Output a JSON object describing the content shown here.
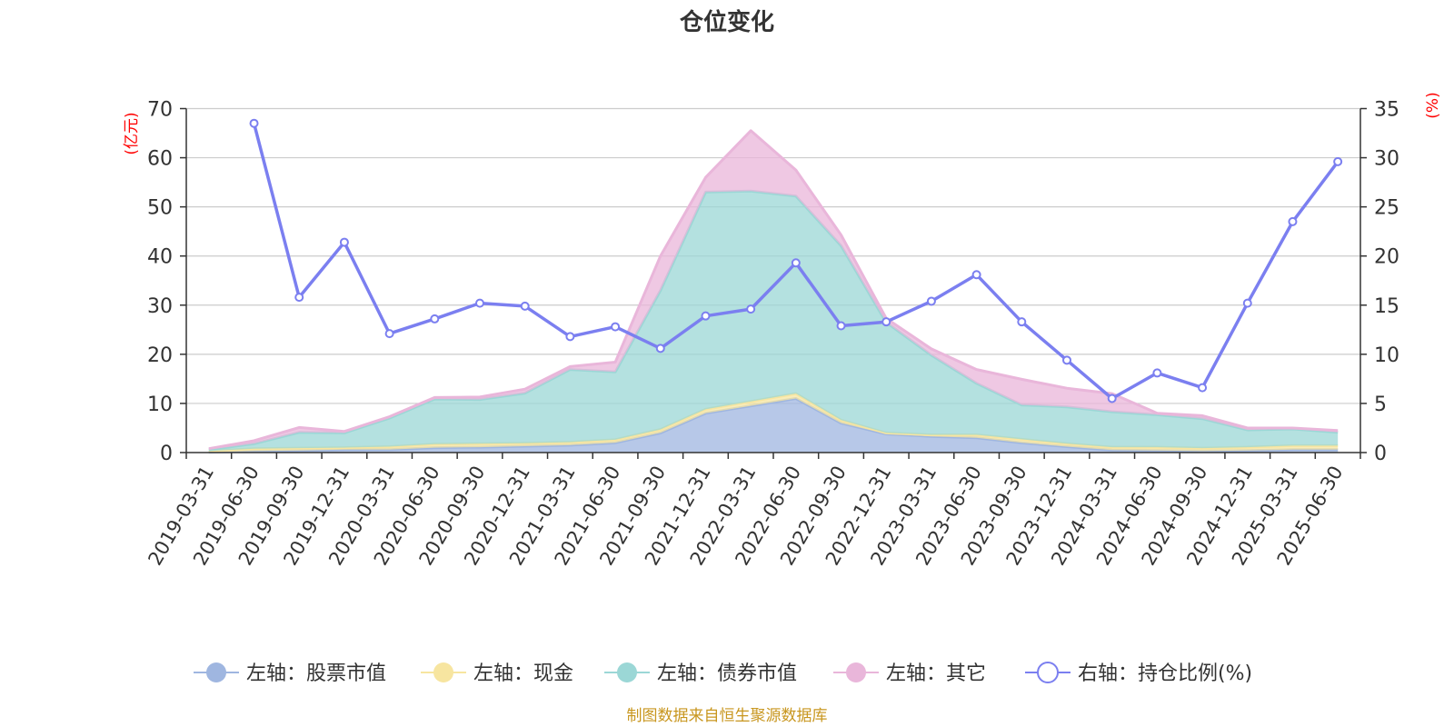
{
  "chart_data": {
    "type": "area",
    "title": "仓位变化",
    "left_unit": "(亿元)",
    "right_unit": "(%)",
    "source_note": "制图数据来自恒生聚源数据库",
    "categories": [
      "2019-03-31",
      "2019-06-30",
      "2019-09-30",
      "2019-12-31",
      "2020-03-31",
      "2020-06-30",
      "2020-09-30",
      "2020-12-31",
      "2021-03-31",
      "2021-06-30",
      "2021-09-30",
      "2021-12-31",
      "2022-03-31",
      "2022-06-30",
      "2022-09-30",
      "2022-12-31",
      "2023-03-31",
      "2023-06-30",
      "2023-09-30",
      "2023-12-31",
      "2024-03-31",
      "2024-06-30",
      "2024-09-30",
      "2024-12-31",
      "2025-03-31",
      "2025-06-30"
    ],
    "ylim_left": [
      0,
      70
    ],
    "yticks_left": [
      0,
      10,
      20,
      30,
      40,
      50,
      60,
      70
    ],
    "ylim_right": [
      0,
      35
    ],
    "yticks_right": [
      0,
      5,
      10,
      15,
      20,
      25,
      30,
      35
    ],
    "grid": true,
    "legend_position": "bottom",
    "series": [
      {
        "name": "左轴：股票市值",
        "axis": "left",
        "stack": true,
        "kind": "area",
        "color": "#9fb6e0",
        "values": [
          0.1,
          0.3,
          0.4,
          0.6,
          0.6,
          1.0,
          1.1,
          1.3,
          1.5,
          2.0,
          4.0,
          8.0,
          9.5,
          11.0,
          6.0,
          3.8,
          3.3,
          3.0,
          2.0,
          1.2,
          0.5,
          0.4,
          0.3,
          0.4,
          0.6,
          0.6
        ]
      },
      {
        "name": "左轴：现金",
        "axis": "left",
        "stack": true,
        "kind": "area",
        "color": "#f7e5a0",
        "values": [
          0.2,
          0.5,
          0.5,
          0.4,
          0.6,
          0.7,
          0.7,
          0.6,
          0.6,
          0.6,
          0.7,
          0.8,
          0.9,
          1.0,
          0.6,
          0.2,
          0.3,
          0.6,
          0.7,
          0.6,
          0.6,
          0.7,
          0.6,
          0.7,
          0.8,
          0.8
        ]
      },
      {
        "name": "左轴：债券市值",
        "axis": "left",
        "stack": true,
        "kind": "area",
        "color": "#9bd7d6",
        "values": [
          0.3,
          1.0,
          3.2,
          3.0,
          5.8,
          9.2,
          9.0,
          10.2,
          14.8,
          13.8,
          28.3,
          44.2,
          42.8,
          40.2,
          35.5,
          22.5,
          16.2,
          10.5,
          7.0,
          7.5,
          7.2,
          6.6,
          6.0,
          3.5,
          3.4,
          2.7
        ]
      },
      {
        "name": "左轴：其它",
        "axis": "left",
        "stack": true,
        "kind": "area",
        "color": "#e9b6da",
        "values": [
          0.2,
          0.6,
          1.0,
          0.3,
          0.3,
          0.3,
          0.5,
          0.8,
          0.6,
          2.0,
          7.0,
          3.0,
          12.3,
          5.3,
          2.2,
          0.8,
          1.3,
          2.8,
          5.2,
          3.8,
          3.7,
          0.3,
          0.6,
          0.4,
          0.2,
          0.4
        ]
      },
      {
        "name": "右轴：持仓比例(%)",
        "axis": "right",
        "stack": false,
        "kind": "line",
        "color": "#7b7ff0",
        "values": [
          null,
          33.5,
          15.8,
          21.4,
          12.1,
          13.6,
          15.2,
          14.9,
          11.8,
          12.8,
          10.6,
          13.9,
          14.6,
          19.3,
          12.9,
          13.3,
          15.4,
          18.1,
          13.3,
          9.4,
          5.5,
          8.1,
          6.6,
          15.2,
          23.5,
          29.6
        ]
      }
    ]
  }
}
